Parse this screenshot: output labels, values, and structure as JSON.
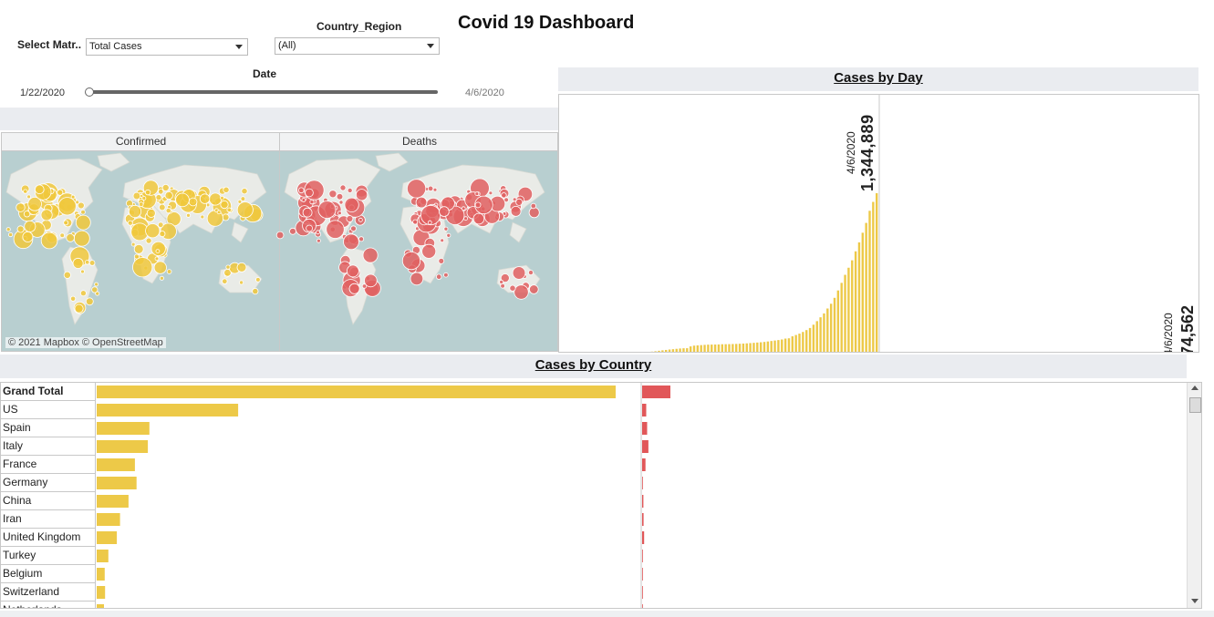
{
  "title": "Covid 19 Dashboard",
  "filters": {
    "metric_label": "Select Matr..",
    "metric_value": "Total Cases",
    "country_label": "Country_Region",
    "country_value": "(All)",
    "date_label": "Date",
    "date_start": "1/22/2020",
    "date_end": "4/6/2020",
    "slider_value_fraction": 0
  },
  "map": {
    "confirmed_header": "Confirmed",
    "deaths_header": "Deaths",
    "credit": "© 2021 Mapbox © OpenStreetMap",
    "confirmed_color": "#f0c83c",
    "deaths_color": "#e06060"
  },
  "colors": {
    "confirmed": "#edc948",
    "deaths": "#e15759",
    "header_band": "#eaecf0"
  },
  "cases_by_day": {
    "header": "Cases by Day",
    "confirmed_label_date": "4/6/2020",
    "confirmed_label_value": "1,344,889",
    "deaths_label_date": "4/6/2020",
    "deaths_label_value": "74,562"
  },
  "cases_by_country": {
    "header": "Cases by Country"
  },
  "chart_data": [
    {
      "type": "bar",
      "title": "Cases by Day",
      "series": [
        {
          "name": "Confirmed",
          "values": [
            555,
            654,
            941,
            1434,
            2118,
            2927,
            5578,
            6166,
            8234,
            9927,
            12038,
            16787,
            19881,
            23892,
            27635,
            30794,
            34391,
            37120,
            40150,
            42762,
            44802,
            45221,
            60368,
            66885,
            69030,
            71224,
            73258,
            75136,
            75639,
            76197,
            76819,
            78572,
            78958,
            79561,
            80406,
            81388,
            82746,
            84112,
            86011,
            88369,
            90306,
            92840,
            95120,
            97886,
            101801,
            105847,
            109821,
            113590,
            118620,
            125875,
            128352,
            145205,
            156101,
            167454,
            181574,
            197102,
            214821,
            242570,
            272208,
            304507,
            336953,
            378235,
            418045,
            467653,
            529591,
            593291,
            660706,
            720117,
            782365,
            857487,
            932605,
            1013466,
            1095917,
            1197405,
            1272115,
            1344889
          ]
        },
        {
          "name": "Deaths",
          "values": [
            17,
            18,
            26,
            42,
            56,
            82,
            131,
            133,
            171,
            213,
            259,
            362,
            426,
            492,
            564,
            634,
            719,
            806,
            906,
            1013,
            1113,
            1118,
            1371,
            1523,
            1666,
            1770,
            1868,
            2007,
            2122,
            2247,
            2251,
            2458,
            2469,
            2629,
            2708,
            2770,
            2814,
            2872,
            2941,
            2996,
            3085,
            3160,
            3254,
            3348,
            3460,
            3558,
            3802,
            3988,
            4262,
            4615,
            4720,
            5404,
            5819,
            6440,
            7126,
            7905,
            8733,
            9867,
            11299,
            12973,
            14651,
            16505,
            18625,
            21181,
            23970,
            27198,
            30652,
            33925,
            37582,
            42107,
            46809,
            52983,
            58787,
            64606,
            69374,
            74562
          ]
        }
      ]
    },
    {
      "type": "bar",
      "title": "Cases by Country",
      "categories": [
        "Grand Total",
        "US",
        "Spain",
        "Italy",
        "France",
        "Germany",
        "China",
        "Iran",
        "United Kingdom",
        "Turkey",
        "Belgium",
        "Switzerland",
        "Netherlands"
      ],
      "series": [
        {
          "name": "Confirmed",
          "values": [
            1344889,
            366667,
            136675,
            132547,
            98963,
            103374,
            82602,
            60500,
            52279,
            30217,
            20814,
            21657,
            18926
          ]
        },
        {
          "name": "Deaths",
          "values": [
            74562,
            10871,
            13341,
            16523,
            8926,
            1810,
            3333,
            3739,
            5385,
            649,
            1632,
            765,
            1874
          ]
        }
      ],
      "scroll_position": 0
    }
  ]
}
